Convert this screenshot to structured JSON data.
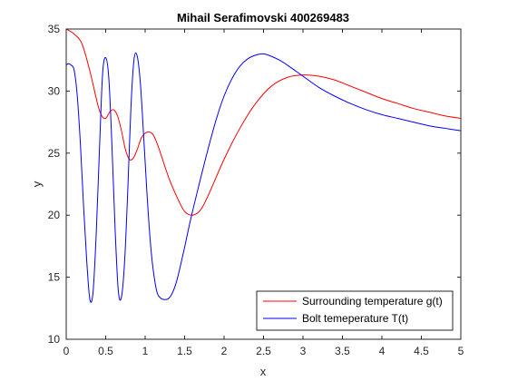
{
  "chart_data": {
    "type": "line",
    "title": "Mihail Serafimovski 400269483",
    "xlabel": "x",
    "ylabel": "y",
    "xlim": [
      0,
      5
    ],
    "ylim": [
      10,
      35
    ],
    "xticks": [
      0,
      0.5,
      1,
      1.5,
      2,
      2.5,
      3,
      3.5,
      4,
      4.5,
      5
    ],
    "xtick_labels": [
      "0",
      "0.5",
      "1",
      "1.5",
      "2",
      "2.5",
      "3",
      "3.5",
      "4",
      "4.5",
      "5"
    ],
    "yticks": [
      10,
      15,
      20,
      25,
      30,
      35
    ],
    "ytick_labels": [
      "10",
      "15",
      "20",
      "25",
      "30",
      "35"
    ],
    "grid": false,
    "legend_position": "bottom-right",
    "series": [
      {
        "name": "Surrounding temperature g(t)",
        "color": "#ff0000",
        "x": [
          0,
          0.1,
          0.2,
          0.3,
          0.4,
          0.45,
          0.5,
          0.55,
          0.6,
          0.65,
          0.7,
          0.75,
          0.8,
          0.85,
          0.9,
          0.95,
          1.0,
          1.05,
          1.1,
          1.15,
          1.2,
          1.3,
          1.4,
          1.5,
          1.6,
          1.7,
          1.8,
          2.0,
          2.2,
          2.4,
          2.6,
          2.8,
          3.0,
          3.2,
          3.4,
          3.6,
          3.8,
          4.0,
          4.2,
          4.4,
          4.6,
          4.8,
          5.0
        ],
        "y": [
          35.0,
          34.6,
          33.8,
          31.6,
          28.9,
          28.0,
          27.8,
          28.3,
          28.5,
          28.0,
          26.8,
          25.3,
          24.5,
          24.6,
          25.3,
          26.2,
          26.6,
          26.7,
          26.5,
          25.8,
          24.9,
          23.0,
          21.5,
          20.3,
          20.0,
          20.4,
          21.6,
          24.5,
          27.0,
          29.0,
          30.4,
          31.1,
          31.3,
          31.2,
          30.9,
          30.4,
          29.9,
          29.4,
          29.0,
          28.6,
          28.3,
          28.0,
          27.8
        ]
      },
      {
        "name": "Bolt temeperature T(t)",
        "color": "#0000ff",
        "x": [
          0,
          0.03,
          0.06,
          0.1,
          0.14,
          0.18,
          0.22,
          0.26,
          0.3,
          0.34,
          0.38,
          0.42,
          0.46,
          0.5,
          0.54,
          0.58,
          0.62,
          0.66,
          0.7,
          0.74,
          0.78,
          0.82,
          0.86,
          0.9,
          0.94,
          0.98,
          1.02,
          1.06,
          1.1,
          1.15,
          1.2,
          1.25,
          1.3,
          1.35,
          1.4,
          1.45,
          1.5,
          1.55,
          1.6,
          1.7,
          1.8,
          1.9,
          2.0,
          2.1,
          2.2,
          2.3,
          2.4,
          2.5,
          2.6,
          2.7,
          2.8,
          3.0,
          3.2,
          3.4,
          3.6,
          3.8,
          4.0,
          4.2,
          4.4,
          4.6,
          4.8,
          5.0
        ],
        "y": [
          32.1,
          32.2,
          32.1,
          31.7,
          29.6,
          25.7,
          20.7,
          16.3,
          13.2,
          13.8,
          18.5,
          25.1,
          31.3,
          32.7,
          31.0,
          25.5,
          18.8,
          13.9,
          13.4,
          16.3,
          22.0,
          28.7,
          32.6,
          32.8,
          30.6,
          26.5,
          22.1,
          18.3,
          15.7,
          13.8,
          13.3,
          13.2,
          13.3,
          13.8,
          14.7,
          16.0,
          17.4,
          18.9,
          20.3,
          22.9,
          25.4,
          27.7,
          29.6,
          31.0,
          32.0,
          32.6,
          32.9,
          33.0,
          32.8,
          32.5,
          32.1,
          31.2,
          30.3,
          29.6,
          29.0,
          28.5,
          28.1,
          27.8,
          27.5,
          27.2,
          27.0,
          26.8
        ]
      }
    ]
  }
}
